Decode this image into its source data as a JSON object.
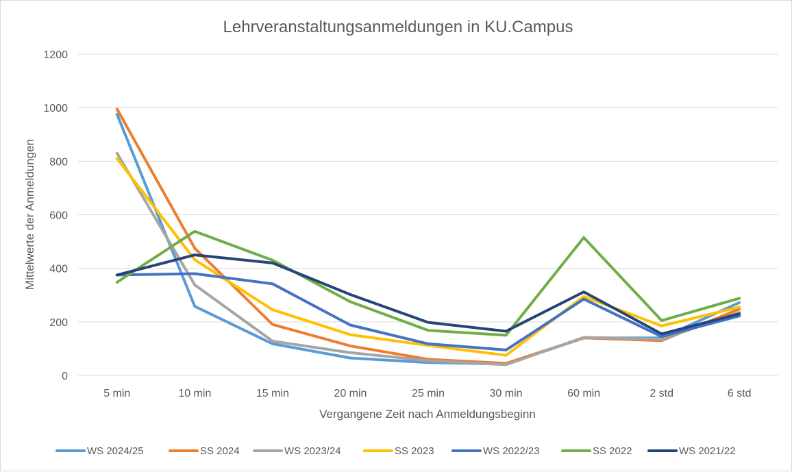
{
  "chart_data": {
    "type": "line",
    "title": "Lehrveranstaltungsanmeldungen  in KU.Campus",
    "xlabel": "Vergangene Zeit nach Anmeldungsbeginn",
    "ylabel": "Mittelwerte der Anmeldungen",
    "ylim": [
      0,
      1200
    ],
    "yticks": [
      0,
      200,
      400,
      600,
      800,
      1000,
      1200
    ],
    "grid": true,
    "legend_position": "bottom",
    "categories": [
      "5 min",
      "10 min",
      "15 min",
      "20 min",
      "25 min",
      "30 min",
      "60 min",
      "2 std",
      "6 std"
    ],
    "series": [
      {
        "name": "WS 2024/25",
        "color": "#5B9BD5",
        "values": [
          975,
          258,
          118,
          65,
          48,
          42,
          140,
          140,
          272
        ]
      },
      {
        "name": "SS 2024",
        "color": "#ED7D31",
        "values": [
          995,
          475,
          190,
          110,
          60,
          45,
          140,
          130,
          248
        ]
      },
      {
        "name": "WS 2023/24",
        "color": "#A5A5A5",
        "values": [
          830,
          338,
          128,
          85,
          55,
          40,
          142,
          135,
          235
        ]
      },
      {
        "name": "SS 2023",
        "color": "#FFC000",
        "values": [
          810,
          432,
          245,
          152,
          112,
          75,
          295,
          185,
          255
        ]
      },
      {
        "name": "WS 2022/23",
        "color": "#4472C4",
        "values": [
          375,
          380,
          342,
          188,
          118,
          95,
          285,
          145,
          222
        ]
      },
      {
        "name": "SS 2022",
        "color": "#70AD47",
        "values": [
          348,
          538,
          430,
          275,
          168,
          150,
          515,
          205,
          288
        ]
      },
      {
        "name": "WS 2021/22",
        "color": "#264478",
        "values": [
          375,
          450,
          420,
          302,
          198,
          165,
          312,
          155,
          230
        ]
      }
    ]
  }
}
